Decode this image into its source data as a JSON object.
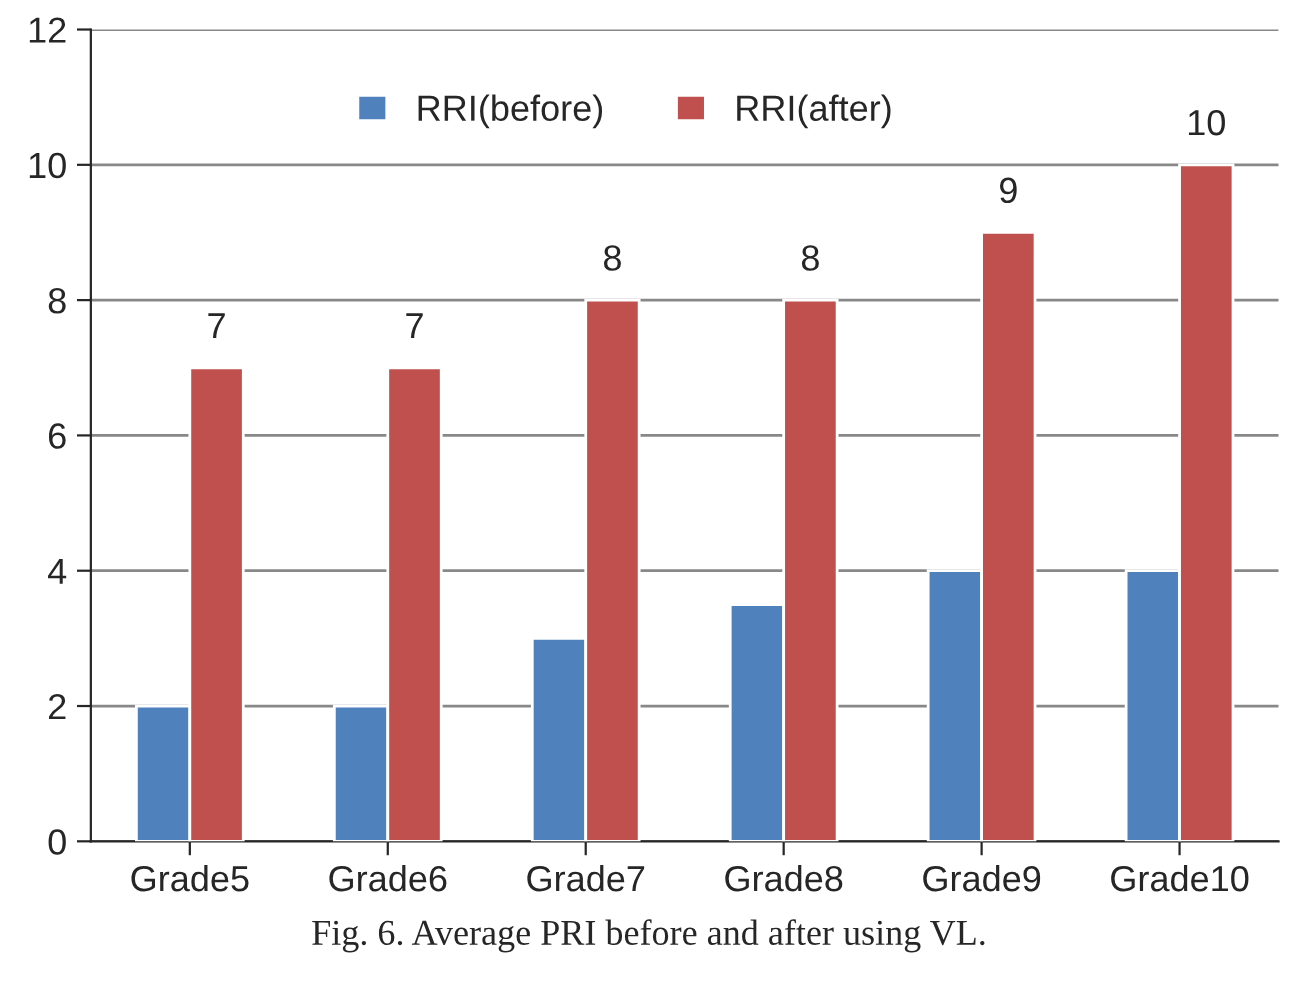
{
  "chart_data": {
    "type": "bar",
    "categories": [
      "Grade5",
      "Grade6",
      "Grade7",
      "Grade8",
      "Grade9",
      "Grade10"
    ],
    "series": [
      {
        "name": "RRI(before)",
        "color": "#4f81bd",
        "values": [
          2,
          2,
          3,
          3.5,
          4,
          4
        ]
      },
      {
        "name": "RRI(after)",
        "color": "#c0504d",
        "values": [
          7,
          7,
          8,
          8,
          9,
          10
        ],
        "value_labels": [
          "7",
          "7",
          "8",
          "8",
          "9",
          "10"
        ]
      }
    ],
    "ylim": [
      0,
      12
    ],
    "yticks": [
      0,
      2,
      4,
      6,
      8,
      10,
      12
    ],
    "grid": "y",
    "legend": "top",
    "annotations": [
      "Fig. 6. Average PRI before and after using VL."
    ]
  }
}
